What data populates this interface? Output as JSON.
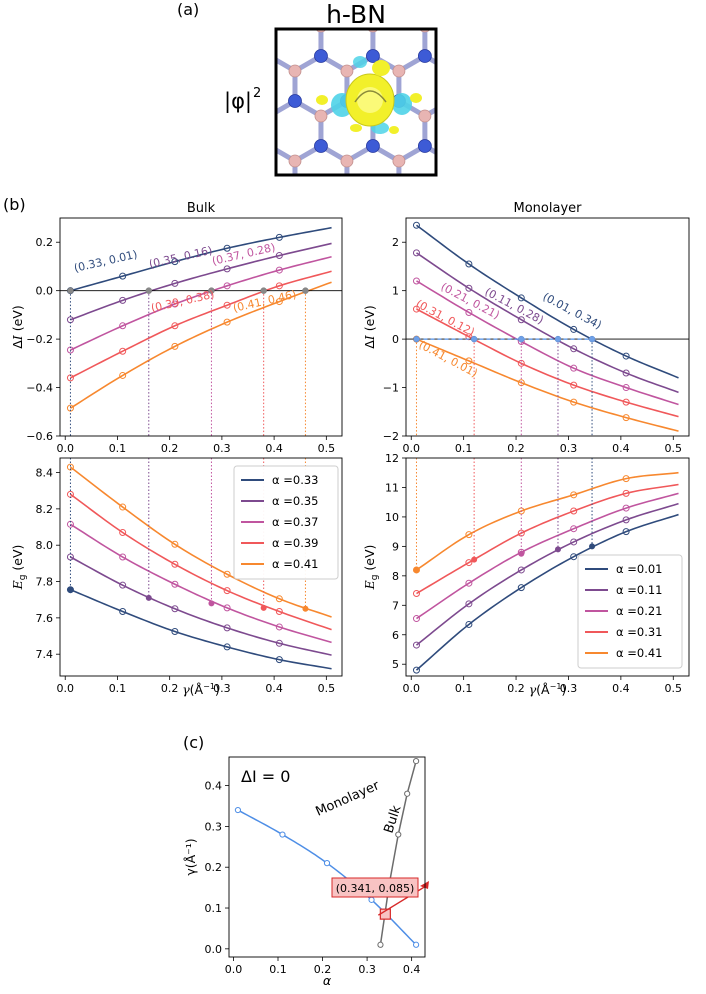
{
  "panel_a": {
    "label": "(a)",
    "title": "h-BN",
    "ylabel": "|φ|",
    "ylabel_sup": "2"
  },
  "panel_b_label": "(b)",
  "panel_c_label": "(c)",
  "colors": {
    "series": [
      "#2f4b7c",
      "#7d4a8f",
      "#c0559f",
      "#f0585a",
      "#f7882f"
    ],
    "monolayer_line": "#4e8ee6",
    "bulk_line": "#6c6c6c",
    "box_fill": "#f8c3c3",
    "box_edge": "#d72a2a",
    "iso_yellow": "#f2f02a",
    "iso_cyan": "#4fd3e8",
    "boron": "#e8b5b3",
    "nitrogen": "#3d5bd6"
  },
  "chart_data": [
    {
      "id": "bulk_dI",
      "type": "line",
      "title": "Bulk",
      "xlabel": "",
      "ylabel": "ΔI (eV)",
      "xlim": [
        -0.01,
        0.53
      ],
      "ylim": [
        -0.6,
        0.3
      ],
      "xticks": [
        0.0,
        0.1,
        0.2,
        0.3,
        0.4,
        0.5
      ],
      "yticks": [
        -0.6,
        -0.4,
        -0.2,
        0.0,
        0.2
      ],
      "xtick_labels": [
        "0.0",
        "0.1",
        "0.2",
        "0.3",
        "0.4",
        "0.5"
      ],
      "ytick_labels": [
        "−0.6",
        "−0.4",
        "−0.2",
        "0.0",
        "0.2"
      ],
      "show_xticklabels": true,
      "x": [
        0.01,
        0.11,
        0.21,
        0.31,
        0.41
      ],
      "fit_x_max": 0.51,
      "series": [
        {
          "name": "α =0.33",
          "values": [
            0.0,
            0.06,
            0.12,
            0.175,
            0.22
          ],
          "end": 0.26
        },
        {
          "name": "α =0.35",
          "values": [
            -0.12,
            -0.04,
            0.03,
            0.09,
            0.145
          ],
          "end": 0.195
        },
        {
          "name": "α =0.37",
          "values": [
            -0.245,
            -0.145,
            -0.055,
            0.02,
            0.085
          ],
          "end": 0.14
        },
        {
          "name": "α =0.39",
          "values": [
            -0.36,
            -0.25,
            -0.145,
            -0.06,
            0.02
          ],
          "end": 0.08
        },
        {
          "name": "α =0.41",
          "values": [
            -0.485,
            -0.35,
            -0.23,
            -0.13,
            -0.045
          ],
          "end": 0.035
        }
      ],
      "zero_line": 0.0,
      "crossings": [
        {
          "x": 0.01,
          "series": 0,
          "label": "(0.33, 0.01)"
        },
        {
          "x": 0.16,
          "series": 1,
          "label": "(0.35, 0.16)"
        },
        {
          "x": 0.28,
          "series": 2,
          "label": "(0.37, 0.28)"
        },
        {
          "x": 0.38,
          "series": 3,
          "label": "(0.39, 0.38)"
        },
        {
          "x": 0.46,
          "series": 4,
          "label": "(0.41, 0.46)"
        }
      ]
    },
    {
      "id": "mono_dI",
      "type": "line",
      "title": "Monolayer",
      "xlabel": "",
      "ylabel": "ΔI (eV)",
      "xlim": [
        -0.01,
        0.53
      ],
      "ylim": [
        -2.0,
        2.5
      ],
      "xticks": [
        0.0,
        0.1,
        0.2,
        0.3,
        0.4,
        0.5
      ],
      "yticks": [
        -2,
        -1,
        0,
        1,
        2
      ],
      "xtick_labels": [
        "0.0",
        "0.1",
        "0.2",
        "0.3",
        "0.4",
        "0.5"
      ],
      "ytick_labels": [
        "−2",
        "−1",
        "0",
        "1",
        "2"
      ],
      "show_xticklabels": true,
      "x": [
        0.01,
        0.11,
        0.21,
        0.31,
        0.41
      ],
      "fit_x_max": 0.51,
      "series": [
        {
          "name": "α =0.01",
          "values": [
            2.35,
            1.55,
            0.85,
            0.2,
            -0.35
          ],
          "end": -0.8
        },
        {
          "name": "α =0.11",
          "values": [
            1.78,
            1.05,
            0.4,
            -0.2,
            -0.7
          ],
          "end": -1.1
        },
        {
          "name": "α =0.21",
          "values": [
            1.2,
            0.55,
            -0.05,
            -0.6,
            -1.0
          ],
          "end": -1.35
        },
        {
          "name": "α =0.31",
          "values": [
            0.62,
            0.05,
            -0.5,
            -0.95,
            -1.3
          ],
          "end": -1.6
        },
        {
          "name": "α =0.41",
          "values": [
            0.0,
            -0.45,
            -0.9,
            -1.3,
            -1.62
          ],
          "end": -1.9
        }
      ],
      "zero_line": 0.0,
      "crossings": [
        {
          "x": 0.345,
          "series": 0,
          "label": "(0.01, 0.34)"
        },
        {
          "x": 0.28,
          "series": 1,
          "label": "(0.11, 0.28)"
        },
        {
          "x": 0.21,
          "series": 2,
          "label": "(0.21, 0.21)"
        },
        {
          "x": 0.12,
          "series": 3,
          "label": "(0.31, 0.12)"
        },
        {
          "x": 0.01,
          "series": 4,
          "label": "(0.41, 0.01)"
        }
      ]
    },
    {
      "id": "bulk_Eg",
      "type": "line",
      "title": "",
      "xlabel": "γ(Å⁻¹)",
      "ylabel": "E_g (eV)",
      "xlim": [
        -0.01,
        0.53
      ],
      "ylim": [
        7.28,
        8.48
      ],
      "xticks": [
        0.0,
        0.1,
        0.2,
        0.3,
        0.4,
        0.5
      ],
      "yticks": [
        7.4,
        7.6,
        7.8,
        8.0,
        8.2,
        8.4
      ],
      "xtick_labels": [
        "0.0",
        "0.1",
        "0.2",
        "0.3",
        "0.4",
        "0.5"
      ],
      "ytick_labels": [
        "7.4",
        "7.6",
        "7.8",
        "8.0",
        "8.2",
        "8.4"
      ],
      "show_xticklabels": true,
      "x": [
        0.01,
        0.11,
        0.21,
        0.31,
        0.41
      ],
      "fit_x_max": 0.51,
      "series": [
        {
          "name": "α =0.33",
          "values": [
            7.755,
            7.635,
            7.525,
            7.44,
            7.37
          ],
          "end": 7.32
        },
        {
          "name": "α =0.35",
          "values": [
            7.935,
            7.78,
            7.65,
            7.545,
            7.46
          ],
          "end": 7.395
        },
        {
          "name": "α =0.37",
          "values": [
            8.115,
            7.935,
            7.785,
            7.655,
            7.55
          ],
          "end": 7.465
        },
        {
          "name": "α =0.39",
          "values": [
            8.28,
            8.07,
            7.895,
            7.75,
            7.635
          ],
          "end": 7.535
        },
        {
          "name": "α =0.41",
          "values": [
            8.43,
            8.21,
            8.005,
            7.84,
            7.705
          ],
          "end": 7.605
        }
      ],
      "crossings": [
        {
          "x": 0.01,
          "series": 0,
          "y": 7.755
        },
        {
          "x": 0.16,
          "series": 1,
          "y": 7.71
        },
        {
          "x": 0.28,
          "series": 2,
          "y": 7.68
        },
        {
          "x": 0.38,
          "series": 3,
          "y": 7.655
        },
        {
          "x": 0.46,
          "series": 4,
          "y": 7.65
        }
      ],
      "legend_location": "upper right"
    },
    {
      "id": "mono_Eg",
      "type": "line",
      "title": "",
      "xlabel": "γ(Å⁻¹)",
      "ylabel": "E_g (eV)",
      "xlim": [
        -0.01,
        0.53
      ],
      "ylim": [
        4.6,
        12.0
      ],
      "xticks": [
        0.0,
        0.1,
        0.2,
        0.3,
        0.4,
        0.5
      ],
      "yticks": [
        5,
        6,
        7,
        8,
        9,
        10,
        11,
        12
      ],
      "xtick_labels": [
        "0.0",
        "0.1",
        "0.2",
        "0.3",
        "0.4",
        "0.5"
      ],
      "ytick_labels": [
        "5",
        "6",
        "7",
        "8",
        "9",
        "10",
        "11",
        "12"
      ],
      "show_xticklabels": true,
      "x": [
        0.01,
        0.11,
        0.21,
        0.31,
        0.41
      ],
      "fit_x_max": 0.51,
      "series": [
        {
          "name": "α =0.01",
          "values": [
            4.8,
            6.35,
            7.6,
            8.65,
            9.5
          ],
          "end": 10.08
        },
        {
          "name": "α =0.11",
          "values": [
            5.65,
            7.05,
            8.2,
            9.15,
            9.9
          ],
          "end": 10.45
        },
        {
          "name": "α =0.21",
          "values": [
            6.55,
            7.75,
            8.8,
            9.6,
            10.3
          ],
          "end": 10.8
        },
        {
          "name": "α =0.31",
          "values": [
            7.4,
            8.45,
            9.45,
            10.2,
            10.8
          ],
          "end": 11.1
        },
        {
          "name": "α =0.41",
          "values": [
            8.2,
            9.4,
            10.2,
            10.75,
            11.3
          ],
          "end": 11.5
        }
      ],
      "crossings": [
        {
          "x": 0.345,
          "series": 0,
          "y": 9.0
        },
        {
          "x": 0.28,
          "series": 1,
          "y": 8.9
        },
        {
          "x": 0.21,
          "series": 2,
          "y": 8.75
        },
        {
          "x": 0.12,
          "series": 3,
          "y": 8.55
        },
        {
          "x": 0.01,
          "series": 4,
          "y": 8.2
        }
      ],
      "legend_location": "lower right"
    },
    {
      "id": "dI_zero",
      "type": "line",
      "title": "ΔI = 0",
      "xlabel": "α",
      "ylabel": "γ(Å⁻¹)",
      "xlim": [
        -0.01,
        0.43
      ],
      "ylim": [
        -0.02,
        0.47
      ],
      "xticks": [
        0.0,
        0.1,
        0.2,
        0.3,
        0.4
      ],
      "yticks": [
        0.0,
        0.1,
        0.2,
        0.3,
        0.4
      ],
      "xtick_labels": [
        "0.0",
        "0.1",
        "0.2",
        "0.3",
        "0.4"
      ],
      "ytick_labels": [
        "0.0",
        "0.1",
        "0.2",
        "0.3",
        "0.4"
      ],
      "series": [
        {
          "name": "Monolayer",
          "x": [
            0.01,
            0.11,
            0.21,
            0.31,
            0.41
          ],
          "y": [
            0.34,
            0.28,
            0.21,
            0.12,
            0.01
          ]
        },
        {
          "name": "Bulk",
          "x": [
            0.33,
            0.35,
            0.37,
            0.39,
            0.41
          ],
          "y": [
            0.01,
            0.16,
            0.28,
            0.38,
            0.46
          ]
        }
      ],
      "intersection": {
        "x": 0.341,
        "y": 0.085,
        "label": "(0.341, 0.085)"
      }
    }
  ]
}
